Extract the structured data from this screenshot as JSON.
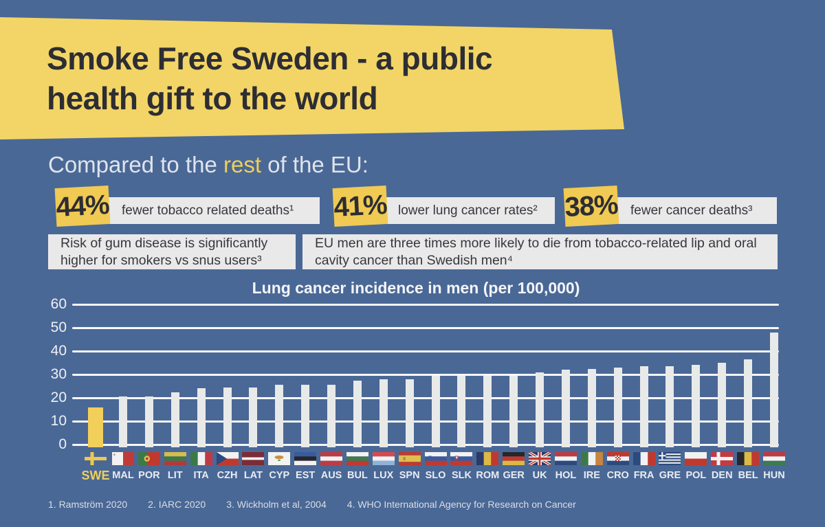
{
  "page": {
    "colors": {
      "background": "#4a6896",
      "banner_yellow": "#f2d566",
      "tag_yellow": "#f0ca52",
      "highlight_yellow": "#efcf58",
      "card_gray": "#e9e9e9",
      "bar_gray": "#e8eae9",
      "bar_yellow": "#f2cf5b",
      "dark_text": "#2d2d33",
      "light_text": "#e8ecf2"
    }
  },
  "header": {
    "title_line1": "Smoke Free Sweden - a public",
    "title_line2": "health gift to the world"
  },
  "subtitle": {
    "prefix": "Compared to the ",
    "highlight": "rest",
    "suffix": " of the EU:"
  },
  "stats": [
    {
      "value": "44%",
      "label": "fewer tobacco related deaths¹"
    },
    {
      "value": "41%",
      "label": "lower lung cancer rates²"
    },
    {
      "value": "38%",
      "label": "fewer cancer deaths³"
    }
  ],
  "facts": [
    "Risk of gum disease is significantly higher for smokers vs snus users³",
    "EU men are three times more likely to die from tobacco-related lip and oral cavity cancer than Swedish men⁴"
  ],
  "chart_data": {
    "type": "bar",
    "title": "Lung cancer incidence in men (per 100,000)",
    "xlabel": "",
    "ylabel": "",
    "ylim": [
      0,
      60
    ],
    "yticks": [
      0,
      10,
      20,
      30,
      40,
      50,
      60
    ],
    "grid": true,
    "legend": false,
    "highlight_category": "SWE",
    "categories": [
      "SWE",
      "MAL",
      "POR",
      "LIT",
      "ITA",
      "CZH",
      "LAT",
      "CYP",
      "EST",
      "AUS",
      "BUL",
      "LUX",
      "SPN",
      "SLO",
      "SLK",
      "ROM",
      "GER",
      "UK",
      "HOL",
      "IRE",
      "CRO",
      "FRA",
      "GRE",
      "POL",
      "DEN",
      "BEL",
      "HUN"
    ],
    "values": [
      16,
      20.5,
      20.5,
      22.5,
      24,
      24.5,
      24.5,
      25.5,
      25.5,
      25.5,
      27.5,
      28,
      28,
      29.5,
      29.5,
      29.5,
      29.5,
      31,
      32,
      32.5,
      33,
      33.5,
      33.5,
      34,
      35,
      36.5,
      48
    ],
    "flags": [
      {
        "kind": "nordic",
        "bg": "#4a6896",
        "cross": "#eec84f"
      },
      {
        "kind": "v",
        "colors": [
          "#f2f2f2",
          "#c03b37"
        ],
        "emblem": "malta"
      },
      {
        "kind": "v",
        "colors": [
          "#3c7a45",
          "#c0392f"
        ],
        "weights": [
          2,
          3
        ],
        "emblem": "portugal"
      },
      {
        "kind": "h",
        "colors": [
          "#d8bc4d",
          "#3c7a45",
          "#b03a3a"
        ]
      },
      {
        "kind": "v",
        "colors": [
          "#3c7a45",
          "#f2f2f2",
          "#bf3b43"
        ]
      },
      {
        "kind": "czech",
        "colors": [
          "#f2f2f2",
          "#c0392f",
          "#2b4a7f"
        ]
      },
      {
        "kind": "h",
        "colors": [
          "#7d2b35",
          "#f2f2f2",
          "#7d2b35"
        ],
        "weights": [
          2,
          1,
          2
        ]
      },
      {
        "kind": "cyprus",
        "colors": [
          "#f2f2f2",
          "#c8913f",
          "#3c7a45"
        ]
      },
      {
        "kind": "h",
        "colors": [
          "#3a5aa0",
          "#26262b",
          "#f2f2f2"
        ]
      },
      {
        "kind": "h",
        "colors": [
          "#bf3b43",
          "#f2f2f2",
          "#bf3b43"
        ]
      },
      {
        "kind": "h",
        "colors": [
          "#f2f2f2",
          "#3c7a52",
          "#c0392f"
        ]
      },
      {
        "kind": "h",
        "colors": [
          "#d8494f",
          "#f2f2f2",
          "#8fb3d8"
        ]
      },
      {
        "kind": "h",
        "colors": [
          "#c0392f",
          "#ddc04e",
          "#c0392f"
        ],
        "weights": [
          1,
          2,
          1
        ],
        "emblem": "spain"
      },
      {
        "kind": "h",
        "colors": [
          "#f2f2f2",
          "#3a5aa0",
          "#c0392f"
        ],
        "emblem": "slovenia"
      },
      {
        "kind": "h",
        "colors": [
          "#f2f2f2",
          "#3a5aa0",
          "#c0392f"
        ],
        "emblem": "slovakia"
      },
      {
        "kind": "v",
        "colors": [
          "#2b3a68",
          "#ddb844",
          "#c0392f"
        ]
      },
      {
        "kind": "h",
        "colors": [
          "#26262b",
          "#c0392f",
          "#ddb844"
        ]
      },
      {
        "kind": "uk",
        "colors": [
          "#2b3a68",
          "#f2f2f2",
          "#c0392f"
        ]
      },
      {
        "kind": "h",
        "colors": [
          "#bf3b43",
          "#f2f2f2",
          "#2b4a7f"
        ]
      },
      {
        "kind": "v",
        "colors": [
          "#3c7a45",
          "#f2f2f2",
          "#c8853f"
        ]
      },
      {
        "kind": "h",
        "colors": [
          "#c0392f",
          "#f2f2f2",
          "#2b4a7f"
        ],
        "emblem": "croatia"
      },
      {
        "kind": "v",
        "colors": [
          "#2b4a7f",
          "#f2f2f2",
          "#c0392f"
        ]
      },
      {
        "kind": "greece",
        "colors": [
          "#2b4a7f",
          "#f2f2f2"
        ]
      },
      {
        "kind": "h",
        "colors": [
          "#f2f2f2",
          "#c0392f"
        ],
        "weights": [
          1,
          1
        ]
      },
      {
        "kind": "nordic",
        "bg": "#c53a42",
        "cross": "#f2f2f2"
      },
      {
        "kind": "v",
        "colors": [
          "#26262b",
          "#ddb844",
          "#c0392f"
        ]
      },
      {
        "kind": "h",
        "colors": [
          "#bf3b43",
          "#f2f2f2",
          "#3c7a52"
        ]
      }
    ]
  },
  "footer": {
    "sources": [
      "1.  Ramström 2020",
      "2. IARC 2020",
      "3. Wickholm et al, 2004",
      "4. WHO International Agency for Research on Cancer"
    ]
  }
}
